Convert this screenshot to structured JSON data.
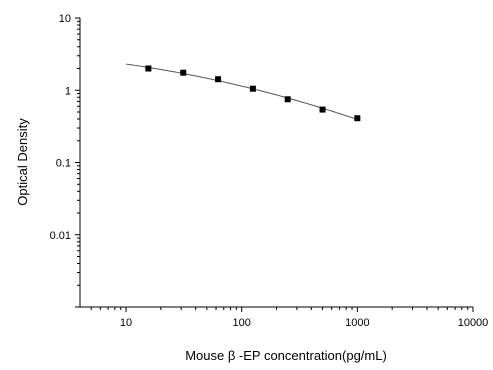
{
  "chart_data": {
    "type": "scatter",
    "title": "",
    "xlabel": "Mouse β -EP concentration(pg/mL)",
    "ylabel": "Optical Density",
    "x_scale": "log",
    "y_scale": "log",
    "xlim": [
      4,
      10000
    ],
    "ylim": [
      0.001,
      10
    ],
    "x_ticks": [
      "10",
      "100",
      "1000",
      "10000"
    ],
    "y_ticks": [
      "10",
      "1",
      "0.1",
      "0.01"
    ],
    "grid": false,
    "legend": "none",
    "series": [
      {
        "x": [
          15.6,
          31.25,
          62.5,
          125,
          250,
          500,
          1000
        ],
        "y": [
          2.0,
          1.75,
          1.42,
          1.05,
          0.75,
          0.54,
          0.41
        ],
        "marker": "square",
        "color": "#000000"
      }
    ],
    "fit_curve": {
      "x_start": 10,
      "x_end": 1000,
      "color": "#555555"
    }
  }
}
